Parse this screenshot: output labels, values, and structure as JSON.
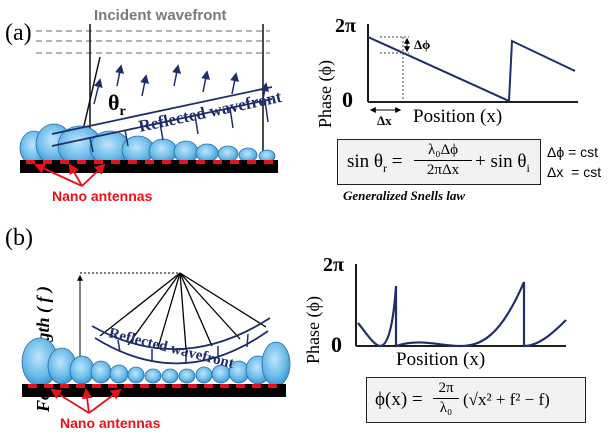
{
  "panel_a": {
    "label": "(a)",
    "incident_label": "Incident wavefront",
    "theta_symbol": "θ",
    "theta_sub": "r",
    "reflected_label": "Reflected wavefront",
    "antennas_label": "Nano antennas",
    "plot": {
      "y_top": "2π",
      "y_zero": "0",
      "y_axis_label": "Phase (ϕ)",
      "x_axis_label": "Position (x)",
      "delta_phi": "Δϕ",
      "delta_x": "Δx"
    },
    "equation": {
      "lhs": "sin θ",
      "lhs_sub": "r",
      "num": "λ₀Δϕ",
      "den": "2πΔx",
      "rhs": "+ sin θ",
      "rhs_sub": "i"
    },
    "caption": "Generalized Snells law",
    "const_phi": "Δϕ = cst",
    "const_x": "Δx  = cst"
  },
  "panel_b": {
    "label": "(b)",
    "focal_label": "Focal length ( f )",
    "reflected_label": "Reflected wavefront",
    "antennas_label": "Nano antennas",
    "plot": {
      "y_top": "2π",
      "y_zero": "0",
      "y_axis_label": "Phase (ϕ)",
      "x_axis_label": "Position (x)"
    },
    "equation": {
      "lhs": "ϕ(x) =",
      "num": "2π",
      "den": "λ₀",
      "rhs": "(√x² + f² − f)"
    }
  },
  "colors": {
    "navy": "#1f2e6b",
    "red": "#e8101b",
    "light_blue": "#5ab4e6",
    "dark_blue": "#1a3c8c"
  }
}
